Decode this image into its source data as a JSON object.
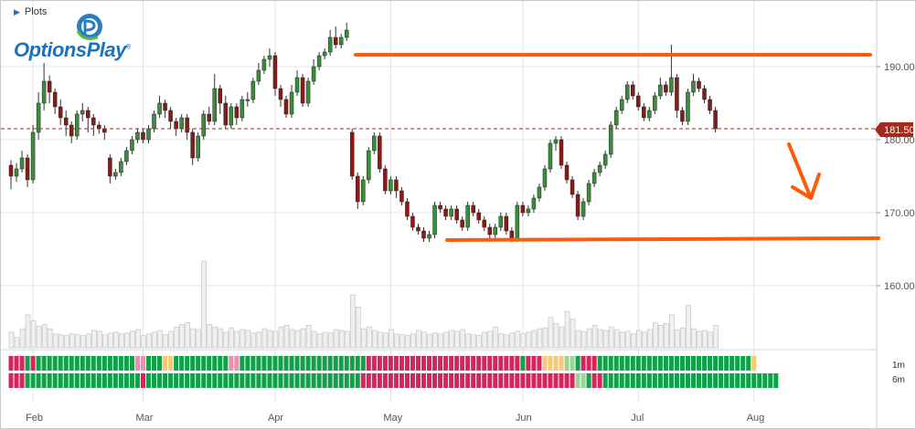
{
  "header": {
    "plots_label": "Plots",
    "logo_text": "OptionsPlay",
    "logo_trademark": "®"
  },
  "price_tag": "181.50",
  "heatmap_labels": [
    "1m",
    "6m"
  ],
  "colors": {
    "up": "#3a8e3a",
    "down": "#8b1a14",
    "annotation": "#ff5a0a",
    "tag": "#a32a1d",
    "grid": "#e4e4e4",
    "volume": "#f0f0f0",
    "heat_green": "#12a04a",
    "heat_light_green": "#9ad49a",
    "heat_red": "#d6245c",
    "heat_pink": "#e98fb0",
    "heat_yellow": "#f7c979"
  },
  "chart_data": {
    "type": "candlestick",
    "x_tick_labels": [
      "Feb",
      "Mar",
      "Apr",
      "May",
      "Jun",
      "Jul",
      "Aug"
    ],
    "x_tick_index": [
      4,
      24,
      48,
      69,
      93,
      114,
      135
    ],
    "y_tick_labels": [
      "160.00",
      "170.00",
      "180.00",
      "190.00"
    ],
    "y_tick_values": [
      160,
      170,
      180,
      190
    ],
    "ylim": [
      147,
      199
    ],
    "current_price": 181.5,
    "grid": true,
    "candles": [
      [
        176.5,
        175.0,
        177.2,
        173.2
      ],
      [
        175.0,
        176.0,
        176.8,
        174.2
      ],
      [
        176.0,
        177.5,
        178.5,
        175.5
      ],
      [
        177.5,
        174.5,
        178.0,
        173.5
      ],
      [
        174.5,
        181.0,
        182.0,
        174.0
      ],
      [
        181.0,
        185.0,
        186.5,
        180.0
      ],
      [
        185.0,
        188.0,
        190.5,
        184.0
      ],
      [
        188.0,
        186.5,
        188.8,
        185.0
      ],
      [
        186.5,
        184.5,
        187.0,
        183.5
      ],
      [
        184.5,
        183.0,
        185.5,
        182.0
      ],
      [
        183.0,
        182.0,
        184.0,
        180.5
      ],
      [
        182.0,
        180.5,
        182.5,
        179.5
      ],
      [
        180.5,
        183.5,
        184.0,
        180.0
      ],
      [
        183.5,
        184.0,
        185.0,
        182.5
      ],
      [
        184.0,
        183.0,
        184.5,
        181.0
      ],
      [
        183.0,
        182.0,
        183.5,
        180.5
      ],
      [
        182.0,
        181.5,
        182.5,
        180.8
      ],
      [
        181.5,
        181.0,
        182.0,
        180.0
      ],
      [
        177.5,
        175.0,
        178.0,
        174.0
      ],
      [
        175.0,
        175.5,
        176.0,
        174.5
      ],
      [
        175.5,
        177.0,
        177.5,
        175.0
      ],
      [
        177.0,
        178.5,
        179.0,
        176.5
      ],
      [
        178.5,
        180.0,
        180.5,
        178.0
      ],
      [
        180.0,
        181.0,
        181.5,
        179.5
      ],
      [
        181.0,
        180.0,
        181.5,
        179.5
      ],
      [
        180.0,
        181.5,
        182.0,
        179.5
      ],
      [
        181.5,
        183.5,
        184.0,
        181.0
      ],
      [
        183.5,
        185.0,
        186.0,
        183.0
      ],
      [
        185.0,
        184.0,
        185.5,
        183.0
      ],
      [
        184.0,
        182.5,
        184.5,
        181.5
      ],
      [
        182.5,
        181.5,
        183.0,
        180.5
      ],
      [
        181.5,
        183.0,
        183.5,
        181.0
      ],
      [
        183.0,
        181.0,
        183.5,
        180.0
      ],
      [
        181.0,
        177.5,
        181.5,
        176.5
      ],
      [
        177.5,
        180.5,
        181.0,
        177.0
      ],
      [
        180.5,
        183.5,
        184.0,
        180.0
      ],
      [
        183.5,
        182.5,
        184.5,
        182.0
      ],
      [
        182.5,
        187.0,
        189.0,
        182.0
      ],
      [
        187.0,
        185.0,
        187.5,
        183.5
      ],
      [
        185.0,
        182.0,
        186.0,
        181.5
      ],
      [
        182.0,
        184.5,
        185.0,
        181.5
      ],
      [
        184.5,
        183.0,
        185.0,
        182.0
      ],
      [
        183.0,
        185.5,
        186.0,
        182.5
      ],
      [
        185.5,
        185.5,
        186.5,
        184.5
      ],
      [
        185.5,
        188.0,
        188.5,
        185.0
      ],
      [
        188.0,
        189.5,
        190.5,
        187.5
      ],
      [
        189.5,
        191.0,
        191.5,
        189.0
      ],
      [
        191.0,
        191.5,
        192.5,
        190.0
      ],
      [
        191.5,
        187.0,
        192.0,
        186.0
      ],
      [
        187.0,
        185.5,
        187.5,
        184.5
      ],
      [
        185.5,
        183.5,
        186.0,
        183.0
      ],
      [
        183.5,
        186.5,
        187.5,
        183.0
      ],
      [
        186.5,
        188.5,
        189.5,
        186.0
      ],
      [
        188.5,
        185.0,
        189.0,
        184.5
      ],
      [
        185.0,
        188.0,
        188.5,
        184.5
      ],
      [
        188.0,
        190.0,
        191.0,
        187.5
      ],
      [
        190.0,
        191.5,
        192.0,
        189.5
      ],
      [
        191.5,
        192.0,
        192.5,
        191.0
      ],
      [
        192.0,
        194.0,
        195.0,
        191.5
      ],
      [
        194.0,
        193.0,
        195.5,
        192.5
      ],
      [
        193.0,
        194.0,
        194.5,
        192.5
      ],
      [
        194.0,
        195.0,
        196.0,
        193.5
      ],
      [
        181.0,
        175.0,
        181.5,
        174.5
      ],
      [
        175.0,
        171.5,
        175.5,
        170.5
      ],
      [
        171.5,
        174.5,
        175.0,
        171.0
      ],
      [
        174.5,
        178.5,
        179.0,
        174.0
      ],
      [
        178.5,
        180.5,
        181.0,
        178.0
      ],
      [
        180.5,
        176.0,
        181.0,
        175.5
      ],
      [
        176.0,
        173.0,
        176.5,
        172.5
      ],
      [
        173.0,
        174.5,
        175.0,
        172.5
      ],
      [
        174.5,
        173.0,
        175.0,
        172.0
      ],
      [
        173.0,
        171.5,
        173.5,
        171.0
      ],
      [
        171.5,
        169.5,
        172.0,
        169.0
      ],
      [
        169.5,
        168.0,
        170.0,
        167.5
      ],
      [
        168.0,
        167.5,
        168.5,
        167.0
      ],
      [
        167.5,
        166.5,
        168.0,
        166.0
      ],
      [
        166.5,
        167.0,
        167.5,
        166.0
      ],
      [
        167.0,
        171.0,
        171.5,
        166.5
      ],
      [
        171.0,
        170.5,
        171.5,
        170.0
      ],
      [
        170.5,
        169.5,
        171.0,
        169.0
      ],
      [
        169.5,
        170.5,
        171.0,
        169.0
      ],
      [
        170.5,
        169.0,
        171.0,
        168.5
      ],
      [
        169.0,
        168.0,
        169.5,
        167.5
      ],
      [
        168.0,
        171.0,
        171.5,
        167.5
      ],
      [
        171.0,
        170.0,
        171.5,
        169.5
      ],
      [
        170.0,
        169.0,
        170.5,
        168.5
      ],
      [
        169.0,
        168.0,
        169.5,
        167.5
      ],
      [
        168.0,
        167.0,
        168.5,
        166.5
      ],
      [
        167.0,
        168.0,
        168.5,
        166.5
      ],
      [
        168.0,
        169.5,
        170.0,
        167.5
      ],
      [
        169.5,
        167.5,
        170.0,
        167.0
      ],
      [
        167.5,
        166.5,
        168.0,
        166.0
      ],
      [
        166.5,
        171.0,
        171.5,
        166.0
      ],
      [
        171.0,
        170.0,
        171.5,
        169.5
      ],
      [
        170.0,
        170.5,
        171.0,
        169.5
      ],
      [
        170.5,
        172.0,
        172.5,
        170.0
      ],
      [
        172.0,
        173.5,
        174.0,
        171.5
      ],
      [
        173.5,
        176.0,
        176.5,
        173.0
      ],
      [
        176.0,
        179.5,
        180.0,
        175.5
      ],
      [
        179.5,
        180.0,
        180.5,
        178.5
      ],
      [
        180.0,
        176.5,
        180.5,
        176.0
      ],
      [
        176.5,
        174.5,
        177.0,
        174.0
      ],
      [
        174.5,
        172.5,
        175.0,
        172.0
      ],
      [
        172.5,
        169.5,
        173.0,
        169.0
      ],
      [
        169.5,
        171.5,
        172.0,
        169.0
      ],
      [
        171.5,
        174.0,
        174.5,
        171.0
      ],
      [
        174.0,
        175.5,
        176.0,
        173.5
      ],
      [
        175.5,
        176.5,
        177.0,
        175.0
      ],
      [
        176.5,
        178.0,
        178.5,
        176.0
      ],
      [
        178.0,
        182.0,
        182.5,
        177.5
      ],
      [
        182.0,
        184.0,
        184.5,
        181.5
      ],
      [
        184.0,
        185.5,
        186.0,
        183.5
      ],
      [
        185.5,
        187.5,
        188.0,
        185.0
      ],
      [
        187.5,
        186.0,
        188.0,
        185.5
      ],
      [
        186.0,
        184.5,
        186.5,
        184.0
      ],
      [
        184.5,
        183.0,
        185.0,
        182.5
      ],
      [
        183.0,
        184.0,
        184.5,
        182.5
      ],
      [
        184.0,
        186.0,
        186.5,
        183.5
      ],
      [
        186.0,
        187.5,
        188.5,
        185.5
      ],
      [
        187.5,
        186.5,
        188.0,
        186.0
      ],
      [
        186.5,
        188.5,
        193.0,
        186.0
      ],
      [
        188.5,
        184.0,
        189.0,
        183.0
      ],
      [
        184.0,
        182.5,
        184.5,
        182.0
      ],
      [
        182.5,
        186.5,
        187.0,
        182.0
      ],
      [
        186.5,
        188.0,
        189.0,
        186.0
      ],
      [
        188.0,
        187.0,
        188.5,
        186.5
      ],
      [
        187.0,
        185.5,
        187.5,
        185.0
      ],
      [
        185.5,
        184.0,
        186.0,
        183.5
      ],
      [
        184.0,
        181.5,
        184.5,
        181.0
      ]
    ],
    "volume_relative": [
      0.18,
      0.12,
      0.22,
      0.38,
      0.31,
      0.25,
      0.27,
      0.22,
      0.16,
      0.15,
      0.14,
      0.16,
      0.15,
      0.14,
      0.16,
      0.2,
      0.19,
      0.15,
      0.17,
      0.18,
      0.16,
      0.17,
      0.19,
      0.21,
      0.14,
      0.16,
      0.18,
      0.2,
      0.15,
      0.19,
      0.24,
      0.27,
      0.29,
      0.22,
      0.21,
      1.0,
      0.27,
      0.24,
      0.22,
      0.18,
      0.23,
      0.19,
      0.21,
      0.2,
      0.17,
      0.18,
      0.22,
      0.2,
      0.19,
      0.24,
      0.26,
      0.21,
      0.2,
      0.22,
      0.26,
      0.19,
      0.16,
      0.18,
      0.17,
      0.21,
      0.2,
      0.19,
      0.61,
      0.47,
      0.22,
      0.24,
      0.2,
      0.18,
      0.17,
      0.21,
      0.16,
      0.15,
      0.14,
      0.16,
      0.2,
      0.18,
      0.15,
      0.17,
      0.16,
      0.18,
      0.2,
      0.19,
      0.21,
      0.16,
      0.15,
      0.14,
      0.18,
      0.19,
      0.24,
      0.16,
      0.15,
      0.17,
      0.19,
      0.16,
      0.18,
      0.2,
      0.22,
      0.23,
      0.35,
      0.28,
      0.24,
      0.42,
      0.33,
      0.2,
      0.19,
      0.22,
      0.26,
      0.21,
      0.2,
      0.24,
      0.21,
      0.18,
      0.19,
      0.16,
      0.2,
      0.18,
      0.21,
      0.29,
      0.26,
      0.28,
      0.38,
      0.21,
      0.23,
      0.49,
      0.22,
      0.19,
      0.2,
      0.18,
      0.26
    ],
    "heatmap_1m": "RRRGRGGGGGGGGGGGGGGGGGGPPGGGYYGGGGGGGGGGPPGGGGGGGGGGGGGGGGGGGGGGGRRRRRRRRRRRRRRRRRRRRRRRRRRRRGRRRYYYYLLGRRRGGGGGGGGGGGGGGGGGGGGGGGGGGGGY",
    "heatmap_6m": "RRRGGGGGGGGGGGGGGGGGGGGGRGGGGGGGGGGGGGGGGGGGGGGGGGGGGGGGGGGGGGGGRRRRRRRRRRRRRRRRRRRRRRRRRRRRRRRRRRRRRRRLLGRRGGGGGGGGGGGGGGGGGGGGGGGGGGGGGGGG"
  }
}
